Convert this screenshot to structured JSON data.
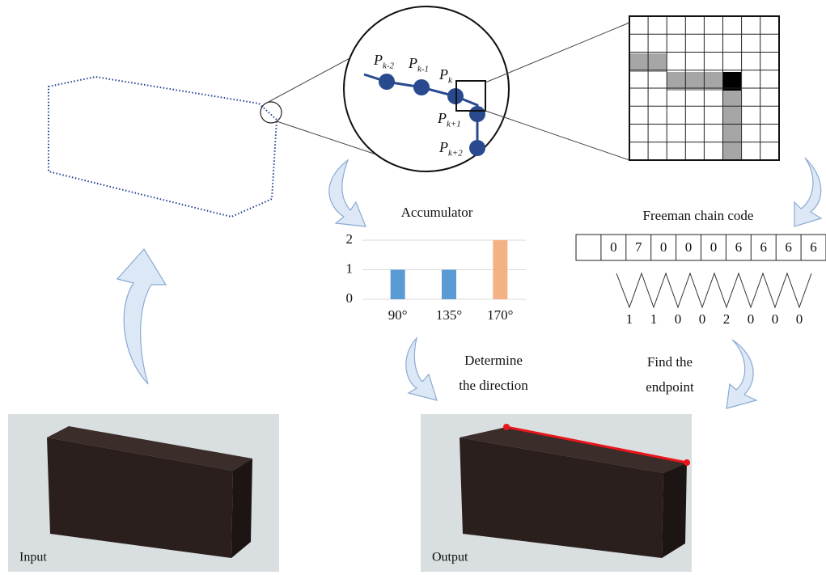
{
  "points": [
    {
      "base": "P",
      "sub": "k-2"
    },
    {
      "base": "P",
      "sub": "k-1"
    },
    {
      "base": "P",
      "sub": "k"
    },
    {
      "base": "P",
      "sub": "k+1"
    },
    {
      "base": "P",
      "sub": "k+2"
    }
  ],
  "chart_data": {
    "type": "bar",
    "title": "Accumulator",
    "categories": [
      "90°",
      "135°",
      "170°"
    ],
    "values": [
      1,
      1,
      2
    ],
    "colors": [
      "#5b9bd5",
      "#5b9bd5",
      "#f4b183"
    ],
    "ylim": [
      0,
      2
    ],
    "yticks": [
      0,
      1,
      2
    ],
    "grid": true
  },
  "chain_code": {
    "title": "Freeman chain code",
    "codes": [
      0,
      7,
      0,
      0,
      0,
      6,
      6,
      6,
      6
    ],
    "differences": [
      1,
      1,
      0,
      0,
      2,
      0,
      0,
      0
    ]
  },
  "steps": {
    "direction": [
      "Determine",
      "the direction"
    ],
    "endpoint": [
      "Find the",
      "endpoint"
    ]
  },
  "images": {
    "input": "Input",
    "output": "Output"
  }
}
